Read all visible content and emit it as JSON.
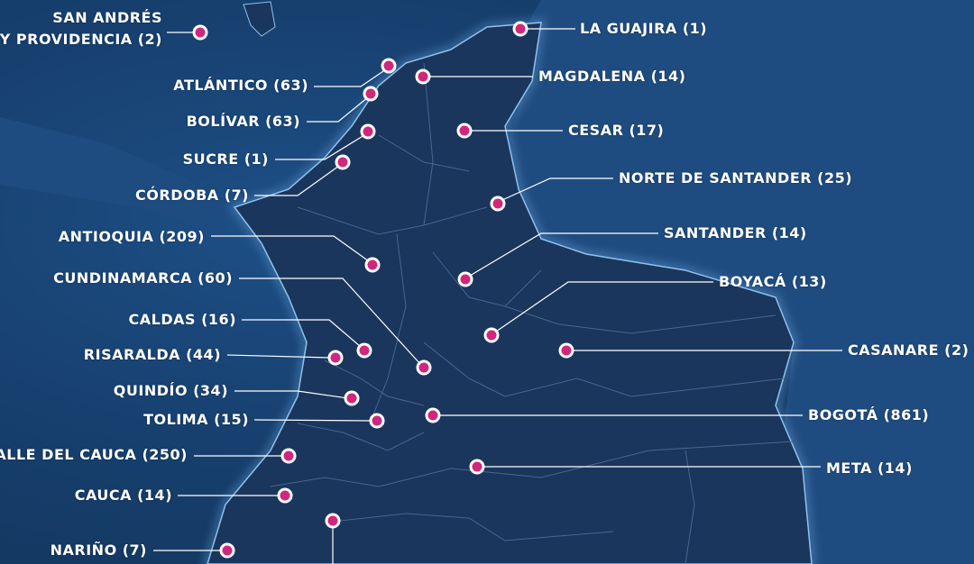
{
  "map": {
    "colors": {
      "ocean": "#17406f",
      "land": "#1a365c",
      "neighbor_land": "#1f4c80",
      "coast_glow": "#6ea8e0",
      "marker": "#d1267d",
      "leader": "#ffffff",
      "text": "#ffffff"
    },
    "departments": [
      {
        "id": "san-andres",
        "name": "SAN ANDRÉS\nY PROVIDENCIA",
        "count": 2
      },
      {
        "id": "atlantico",
        "name": "ATLÁNTICO",
        "count": 63
      },
      {
        "id": "bolivar",
        "name": "BOLÍVAR",
        "count": 63
      },
      {
        "id": "sucre",
        "name": "SUCRE",
        "count": 1
      },
      {
        "id": "cordoba",
        "name": "CÓRDOBA",
        "count": 7
      },
      {
        "id": "antioquia",
        "name": "ANTIOQUIA",
        "count": 209
      },
      {
        "id": "cundinamarca",
        "name": "CUNDINAMARCA",
        "count": 60
      },
      {
        "id": "caldas",
        "name": "CALDAS",
        "count": 16
      },
      {
        "id": "risaralda",
        "name": "RISARALDA",
        "count": 44
      },
      {
        "id": "quindio",
        "name": "QUINDÍO",
        "count": 34
      },
      {
        "id": "tolima",
        "name": "TOLIMA",
        "count": 15
      },
      {
        "id": "valle-del-cauca",
        "name": "VALLE DEL CAUCA",
        "count": 250
      },
      {
        "id": "cauca",
        "name": "CAUCA",
        "count": 14
      },
      {
        "id": "narino",
        "name": "NARIÑO",
        "count": 7
      },
      {
        "id": "la-guajira",
        "name": "LA GUAJIRA",
        "count": 1
      },
      {
        "id": "magdalena",
        "name": "MAGDALENA",
        "count": 14
      },
      {
        "id": "cesar",
        "name": "CESAR",
        "count": 17
      },
      {
        "id": "norte-de-santander",
        "name": "NORTE DE SANTANDER",
        "count": 25
      },
      {
        "id": "santander",
        "name": "SANTANDER",
        "count": 14
      },
      {
        "id": "boyaca",
        "name": "BOYACÁ",
        "count": 13
      },
      {
        "id": "casanare",
        "name": "CASANARE",
        "count": 2
      },
      {
        "id": "bogota",
        "name": "BOGOTÁ",
        "count": 861
      },
      {
        "id": "meta",
        "name": "META",
        "count": 14
      }
    ]
  }
}
